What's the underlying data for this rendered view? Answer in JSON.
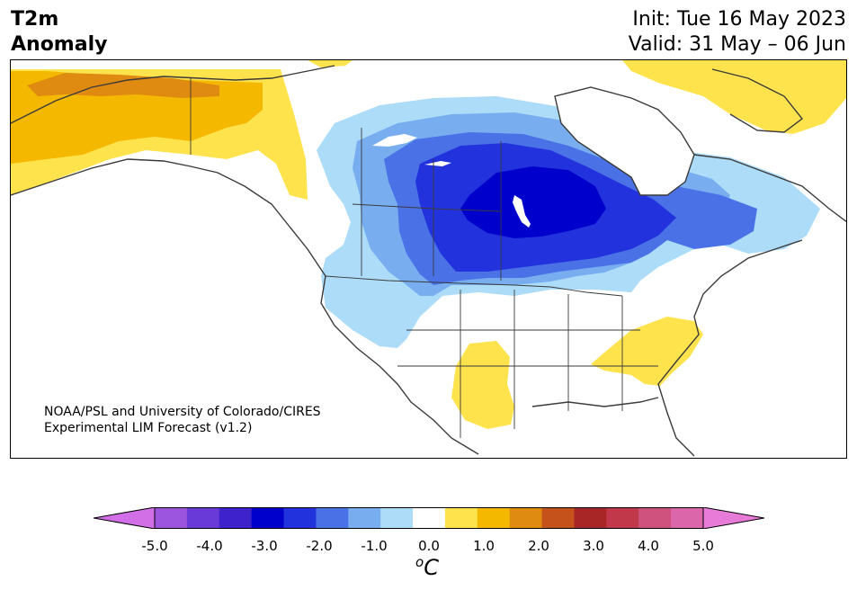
{
  "title": {
    "line1": "T2m",
    "line2": "Anomaly"
  },
  "header": {
    "init": "Init: Tue 16 May 2023",
    "valid": "Valid: 31 May – 06 Jun"
  },
  "credit": {
    "line1": "NOAA/PSL and University of Colorado/CIRES",
    "line2": "Experimental LIM Forecast (v1.2)"
  },
  "colorbar": {
    "ticks": [
      "-5.0",
      "-4.0",
      "-3.0",
      "-2.0",
      "-1.0",
      "0.0",
      "1.0",
      "2.0",
      "3.0",
      "4.0",
      "5.0"
    ],
    "unit_main": "C",
    "unit_sup": "o",
    "colors": [
      "#d26ee6",
      "#9b55de",
      "#6a3ad8",
      "#3e22cc",
      "#0000cc",
      "#2233dd",
      "#4a72e6",
      "#78aef0",
      "#acdcf8",
      "#ffffff",
      "#ffe34d",
      "#f4b800",
      "#df8a10",
      "#c4521a",
      "#a92626",
      "#c0384a",
      "#cf527e",
      "#db66aa",
      "#e87ad8"
    ]
  },
  "map": {
    "colors": {
      "cold1": "#acdcf8",
      "cold2": "#78aef0",
      "cold3": "#4a72e6",
      "cold4": "#2233dd",
      "cold5": "#0000cc",
      "warm1": "#ffe34d",
      "warm2": "#f4b800",
      "warm3": "#df8a10",
      "land": "#ffffff",
      "coast": "#3a3a3a"
    }
  }
}
